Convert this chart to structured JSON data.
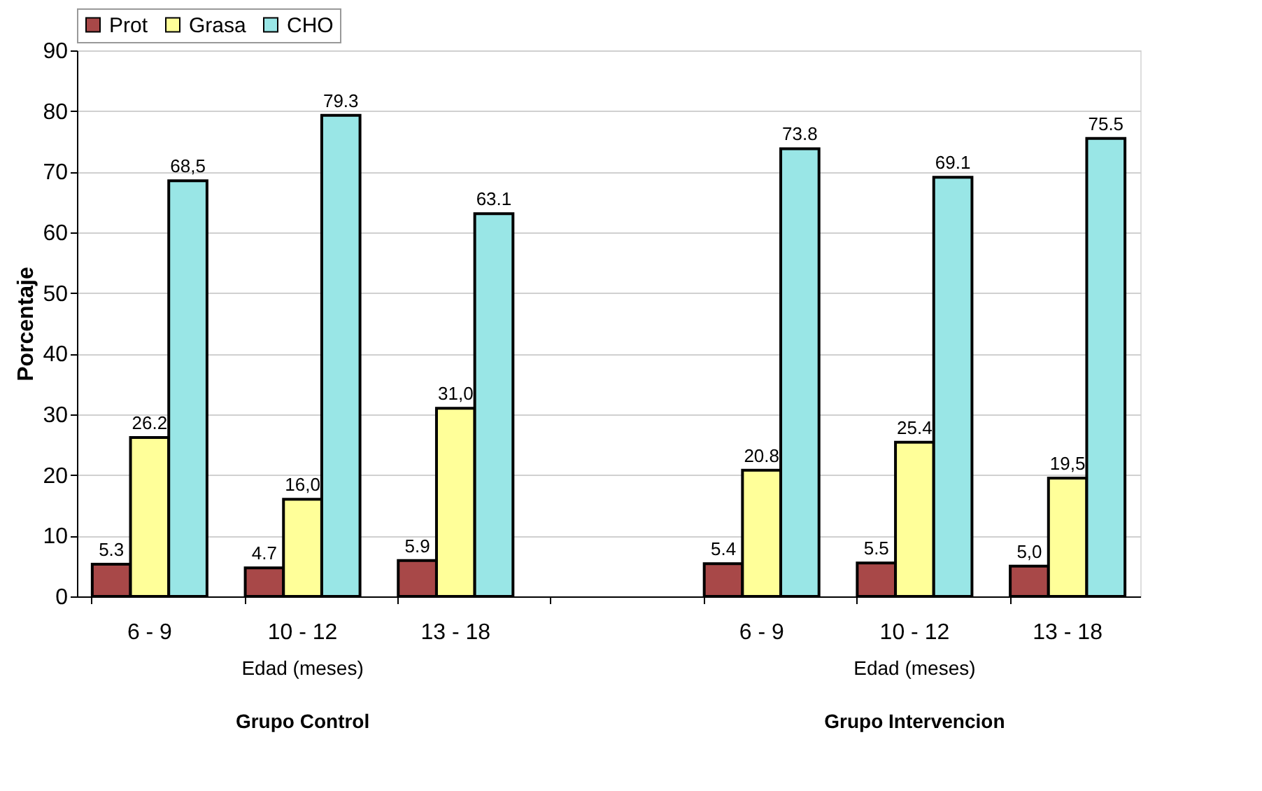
{
  "chart_data": {
    "type": "bar",
    "ylabel": "Porcentaje",
    "categories": [
      "6 - 9",
      "10 - 12",
      "13 - 18",
      null,
      "6 - 9",
      "10 - 12",
      "13 - 18"
    ],
    "series": [
      {
        "name": "Prot",
        "color": "#a84848",
        "values": [
          5.3,
          4.7,
          5.9,
          null,
          5.4,
          5.5,
          5.0
        ],
        "value_labels": [
          "5.3",
          "4.7",
          "5.9",
          null,
          "5.4",
          "5.5",
          "5,0"
        ]
      },
      {
        "name": "Grasa",
        "color": "#ffff99",
        "values": [
          26.2,
          16.0,
          31.0,
          null,
          20.8,
          25.4,
          19.5
        ],
        "value_labels": [
          "26.2",
          "16,0",
          "31,0",
          null,
          "20.8",
          "25.4",
          "19,5"
        ]
      },
      {
        "name": "CHO",
        "color": "#99e6e6",
        "values": [
          68.5,
          79.3,
          63.1,
          null,
          73.8,
          69.1,
          75.5
        ],
        "value_labels": [
          "68,5",
          "79.3",
          "63.1",
          null,
          "73.8",
          "69.1",
          "75.5"
        ]
      }
    ],
    "ylim": [
      0,
      90
    ],
    "yticks": [
      0,
      10,
      20,
      30,
      40,
      50,
      60,
      70,
      80,
      90
    ],
    "grid": "y",
    "legend": "top",
    "annotations": [
      "Edad (meses)",
      "Edad (meses)",
      "Grupo Control",
      "Grupo Intervencion"
    ]
  }
}
